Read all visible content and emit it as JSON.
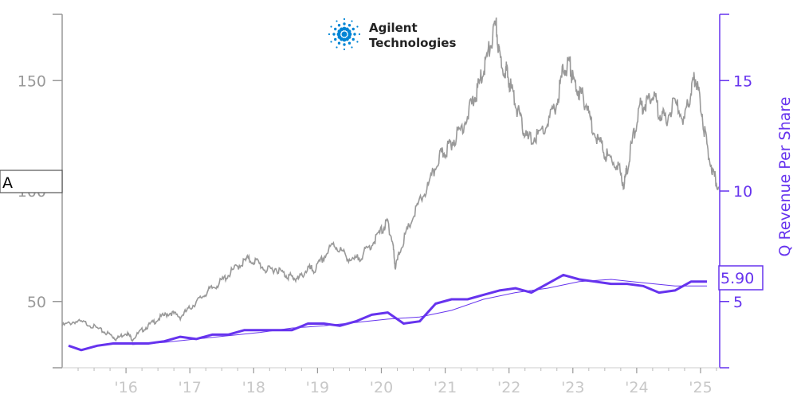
{
  "logo": {
    "line1": "Agilent",
    "line2": "Technologies",
    "color": "#0085d5"
  },
  "ticker": "A",
  "colors": {
    "price": "#999999",
    "revenue": "#6633ee",
    "axis_left": "#999999",
    "axis_right": "#6633ee",
    "x_ticks": "#c8c8c8"
  },
  "chart_data": {
    "type": "line",
    "x_ticks": [
      "'16",
      "'17",
      "'18",
      "'19",
      "'20",
      "'21",
      "'22",
      "'23",
      "'24",
      "'25"
    ],
    "x_range": [
      2015.0,
      2025.3
    ],
    "left_axis": {
      "ticks": [
        "50",
        "100",
        "150"
      ],
      "range": [
        20,
        180
      ]
    },
    "right_axis": {
      "label": "Q Revenue Per Share",
      "ticks": [
        "5",
        "10",
        "15"
      ],
      "range": [
        2,
        18
      ]
    },
    "last_value_label": "5.90",
    "series": [
      {
        "axis": "left",
        "points": [
          [
            2015.0,
            39
          ],
          [
            2015.2,
            41
          ],
          [
            2015.4,
            40
          ],
          [
            2015.6,
            37
          ],
          [
            2015.75,
            35
          ],
          [
            2015.85,
            33
          ],
          [
            2016.0,
            36
          ],
          [
            2016.1,
            33
          ],
          [
            2016.25,
            37
          ],
          [
            2016.4,
            40
          ],
          [
            2016.55,
            43
          ],
          [
            2016.7,
            45
          ],
          [
            2016.85,
            43
          ],
          [
            2017.0,
            47
          ],
          [
            2017.15,
            51
          ],
          [
            2017.3,
            55
          ],
          [
            2017.45,
            58
          ],
          [
            2017.6,
            62
          ],
          [
            2017.75,
            66
          ],
          [
            2017.9,
            69
          ],
          [
            2018.05,
            68
          ],
          [
            2018.2,
            64
          ],
          [
            2018.35,
            65
          ],
          [
            2018.5,
            62
          ],
          [
            2018.6,
            61
          ],
          [
            2018.7,
            60
          ],
          [
            2018.85,
            65
          ],
          [
            2018.95,
            64
          ],
          [
            2019.1,
            70
          ],
          [
            2019.25,
            76
          ],
          [
            2019.4,
            72
          ],
          [
            2019.55,
            68
          ],
          [
            2019.7,
            71
          ],
          [
            2019.85,
            76
          ],
          [
            2020.0,
            82
          ],
          [
            2020.1,
            86
          ],
          [
            2020.18,
            76
          ],
          [
            2020.22,
            65
          ],
          [
            2020.3,
            74
          ],
          [
            2020.45,
            85
          ],
          [
            2020.6,
            95
          ],
          [
            2020.75,
            103
          ],
          [
            2020.9,
            115
          ],
          [
            2021.0,
            118
          ],
          [
            2021.1,
            122
          ],
          [
            2021.25,
            128
          ],
          [
            2021.4,
            138
          ],
          [
            2021.5,
            145
          ],
          [
            2021.6,
            155
          ],
          [
            2021.7,
            165
          ],
          [
            2021.8,
            175
          ],
          [
            2021.85,
            160
          ],
          [
            2021.95,
            155
          ],
          [
            2022.0,
            150
          ],
          [
            2022.1,
            140
          ],
          [
            2022.2,
            130
          ],
          [
            2022.3,
            123
          ],
          [
            2022.45,
            125
          ],
          [
            2022.6,
            130
          ],
          [
            2022.75,
            140
          ],
          [
            2022.85,
            155
          ],
          [
            2022.95,
            158
          ],
          [
            2023.0,
            150
          ],
          [
            2023.1,
            145
          ],
          [
            2023.2,
            140
          ],
          [
            2023.3,
            130
          ],
          [
            2023.45,
            120
          ],
          [
            2023.55,
            115
          ],
          [
            2023.7,
            112
          ],
          [
            2023.8,
            103
          ],
          [
            2023.85,
            110
          ],
          [
            2023.95,
            125
          ],
          [
            2024.05,
            138
          ],
          [
            2024.15,
            140
          ],
          [
            2024.25,
            145
          ],
          [
            2024.35,
            136
          ],
          [
            2024.45,
            132
          ],
          [
            2024.6,
            140
          ],
          [
            2024.75,
            132
          ],
          [
            2024.85,
            145
          ],
          [
            2024.92,
            152
          ],
          [
            2025.0,
            140
          ],
          [
            2025.1,
            120
          ],
          [
            2025.2,
            108
          ],
          [
            2025.28,
            102
          ]
        ]
      },
      {
        "axis": "right",
        "name": "revenue",
        "points": [
          [
            2015.1,
            3.0
          ],
          [
            2015.3,
            2.8
          ],
          [
            2015.55,
            3.0
          ],
          [
            2015.8,
            3.1
          ],
          [
            2016.1,
            3.1
          ],
          [
            2016.35,
            3.1
          ],
          [
            2016.6,
            3.2
          ],
          [
            2016.85,
            3.4
          ],
          [
            2017.1,
            3.3
          ],
          [
            2017.35,
            3.5
          ],
          [
            2017.6,
            3.5
          ],
          [
            2017.85,
            3.7
          ],
          [
            2018.1,
            3.7
          ],
          [
            2018.35,
            3.7
          ],
          [
            2018.6,
            3.7
          ],
          [
            2018.85,
            4.0
          ],
          [
            2019.1,
            4.0
          ],
          [
            2019.35,
            3.9
          ],
          [
            2019.6,
            4.1
          ],
          [
            2019.85,
            4.4
          ],
          [
            2020.1,
            4.5
          ],
          [
            2020.35,
            4.0
          ],
          [
            2020.6,
            4.1
          ],
          [
            2020.85,
            4.9
          ],
          [
            2021.1,
            5.1
          ],
          [
            2021.35,
            5.1
          ],
          [
            2021.6,
            5.3
          ],
          [
            2021.85,
            5.5
          ],
          [
            2022.1,
            5.6
          ],
          [
            2022.35,
            5.4
          ],
          [
            2022.6,
            5.8
          ],
          [
            2022.85,
            6.2
          ],
          [
            2023.1,
            6.0
          ],
          [
            2023.35,
            5.9
          ],
          [
            2023.6,
            5.8
          ],
          [
            2023.85,
            5.8
          ],
          [
            2024.1,
            5.7
          ],
          [
            2024.35,
            5.4
          ],
          [
            2024.6,
            5.5
          ],
          [
            2024.85,
            5.9
          ],
          [
            2025.1,
            5.9
          ]
        ]
      },
      {
        "axis": "right",
        "name": "revenue-trend",
        "points": [
          [
            2016.1,
            3.05
          ],
          [
            2016.6,
            3.15
          ],
          [
            2017.1,
            3.3
          ],
          [
            2017.6,
            3.45
          ],
          [
            2018.1,
            3.6
          ],
          [
            2018.6,
            3.8
          ],
          [
            2019.1,
            3.9
          ],
          [
            2019.6,
            4.05
          ],
          [
            2020.1,
            4.2
          ],
          [
            2020.6,
            4.3
          ],
          [
            2021.1,
            4.6
          ],
          [
            2021.6,
            5.1
          ],
          [
            2022.1,
            5.4
          ],
          [
            2022.6,
            5.6
          ],
          [
            2023.1,
            5.9
          ],
          [
            2023.6,
            6.0
          ],
          [
            2024.1,
            5.85
          ],
          [
            2024.6,
            5.7
          ],
          [
            2025.1,
            5.7
          ]
        ]
      }
    ]
  }
}
